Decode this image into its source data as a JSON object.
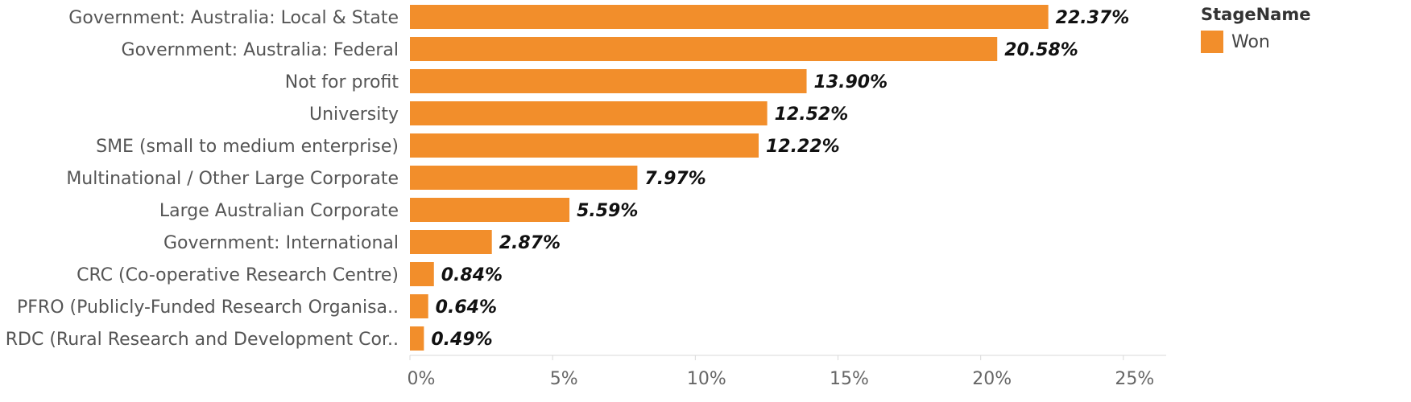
{
  "chart_data": {
    "type": "bar",
    "orientation": "horizontal",
    "categories": [
      "Government: Australia: Local & State",
      "Government: Australia: Federal",
      "Not for profit",
      "University",
      "SME (small to medium enterprise)",
      "Multinational / Other Large Corporate",
      "Large Australian Corporate",
      "Government: International",
      "CRC (Co-operative Research Centre)",
      "PFRO (Publicly-Funded Research Organisa..",
      "RDC (Rural Research and Development Cor.."
    ],
    "series": [
      {
        "name": "Won",
        "values": [
          22.37,
          20.58,
          13.9,
          12.52,
          12.22,
          7.97,
          5.59,
          2.87,
          0.84,
          0.64,
          0.49
        ],
        "value_labels": [
          "22.37%",
          "20.58%",
          "13.90%",
          "12.52%",
          "12.22%",
          "7.97%",
          "5.59%",
          "2.87%",
          "0.84%",
          "0.64%",
          "0.49%"
        ]
      }
    ],
    "xlim": [
      0,
      26.5
    ],
    "xticks": [
      0,
      5,
      10,
      15,
      20,
      25
    ],
    "xtick_labels": [
      "0%",
      "5%",
      "10%",
      "15%",
      "20%",
      "25%"
    ],
    "grid": false,
    "legend": {
      "title": "StageName",
      "placement": "top-right",
      "items": [
        "Won"
      ]
    },
    "colors": {
      "Won": "#F28E2B"
    }
  }
}
